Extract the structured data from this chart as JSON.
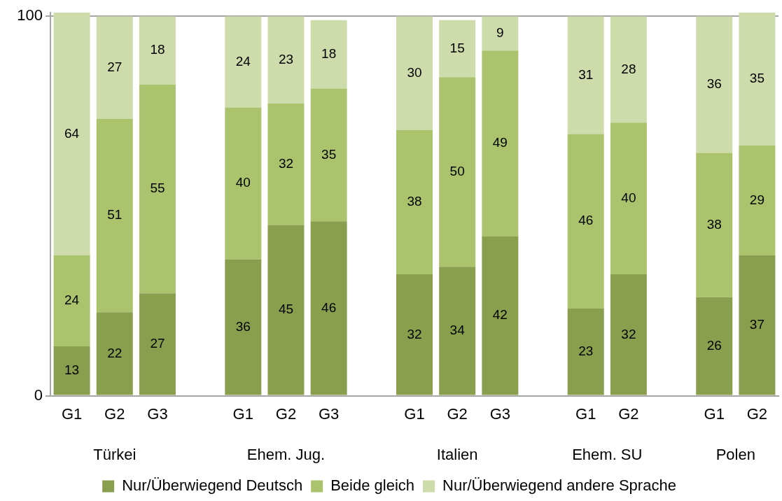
{
  "chart_data": {
    "type": "bar",
    "stacked": true,
    "categories": [
      "G1",
      "G2",
      "G3",
      null,
      "G1",
      "G2",
      "G3",
      null,
      "G1",
      "G2",
      "G3",
      null,
      "G1",
      "G2",
      null,
      "G1",
      "G2"
    ],
    "series": [
      {
        "name": "Nur/Überwiegend Deutsch",
        "color": "#8a9f4e",
        "values": [
          13,
          22,
          27,
          null,
          36,
          45,
          46,
          null,
          32,
          34,
          42,
          null,
          23,
          32,
          null,
          26,
          37
        ]
      },
      {
        "name": "Beide gleich",
        "color": "#abc36c",
        "values": [
          24,
          51,
          55,
          null,
          40,
          32,
          35,
          null,
          38,
          50,
          49,
          null,
          46,
          40,
          null,
          38,
          29
        ]
      },
      {
        "name": "Nur/Überwiegend andere Sprache",
        "color": "#cedbab",
        "values": [
          64,
          27,
          18,
          null,
          24,
          23,
          18,
          null,
          30,
          15,
          9,
          null,
          31,
          28,
          null,
          36,
          35
        ]
      }
    ],
    "ylim": [
      0,
      101
    ],
    "yticks": [
      0,
      100
    ],
    "grid": "y",
    "legend": "bottom",
    "data_labels": true,
    "annotations": [
      "Türkei",
      "Ehem. Jug.",
      "Italien",
      "Ehem. SU",
      "Polen"
    ]
  }
}
